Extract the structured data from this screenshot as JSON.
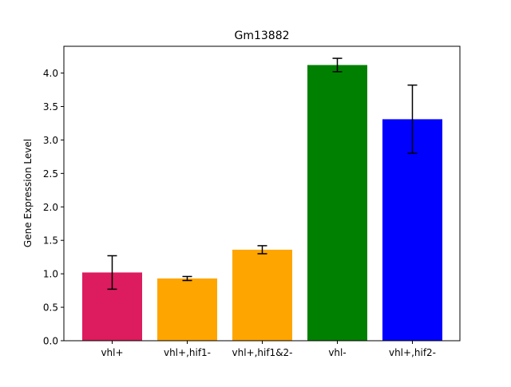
{
  "chart_data": {
    "type": "bar",
    "title": "Gm13882",
    "xlabel": "",
    "ylabel": "Gene Expression Level",
    "ylim": [
      0,
      4.4
    ],
    "yticks": [
      "0.0",
      "0.5",
      "1.0",
      "1.5",
      "2.0",
      "2.5",
      "3.0",
      "3.5",
      "4.0"
    ],
    "grid": false,
    "categories": [
      "vhl+",
      "vhl+,hif1-",
      "vhl+,hif1&2-",
      "vhl-",
      "vhl+,hif2-"
    ],
    "values": [
      1.02,
      0.93,
      1.36,
      4.12,
      3.31
    ],
    "errors": [
      0.25,
      0.03,
      0.06,
      0.1,
      0.51
    ],
    "colors": [
      "#dc1c5e",
      "#ffa500",
      "#ffa500",
      "#008000",
      "#0000ff"
    ]
  }
}
